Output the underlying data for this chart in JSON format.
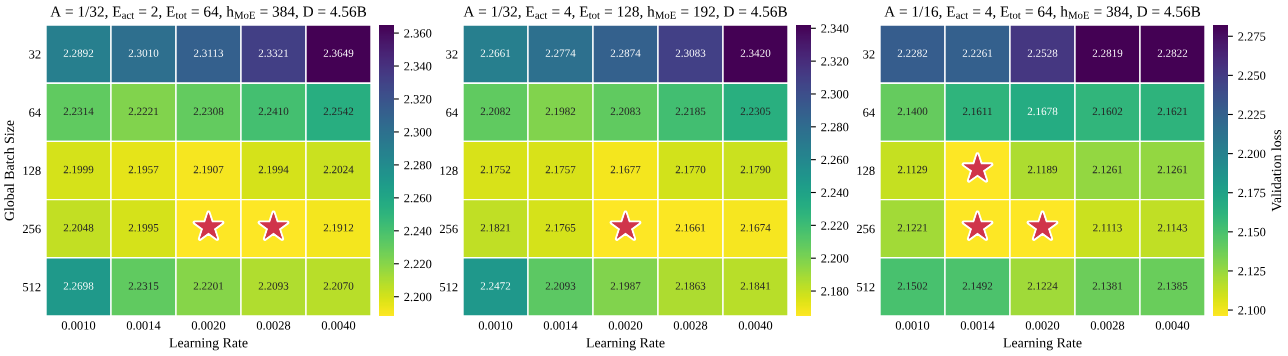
{
  "chart_data": [
    {
      "type": "heatmap",
      "title": "A = 1/32, E$_{act}$ = 2, E$_{tot}$ = 64, h$_{MoE}$ = 384, D = 4.56B",
      "xlabel": "Learning Rate",
      "ylabel": "Global Batch Size",
      "categories": [
        "0.0010",
        "0.0014",
        "0.0020",
        "0.0028",
        "0.0040"
      ],
      "y_categories": [
        "32",
        "64",
        "128",
        "256",
        "512"
      ],
      "cells": [
        [
          2.2892,
          2.301,
          2.3113,
          2.3321,
          2.3649
        ],
        [
          2.2314,
          2.2221,
          2.2308,
          2.241,
          2.2542
        ],
        [
          2.1999,
          2.1957,
          2.1907,
          2.1994,
          2.2024
        ],
        [
          2.2048,
          2.1995,
          2.1883,
          2.1884,
          2.1912
        ],
        [
          2.2698,
          2.2315,
          2.2201,
          2.2093,
          2.207
        ]
      ],
      "cell_labels": [
        [
          "2.2892",
          "2.3010",
          "2.3113",
          "2.3321",
          "2.3649"
        ],
        [
          "2.2314",
          "2.2221",
          "2.2308",
          "2.2410",
          "2.2542"
        ],
        [
          "2.1999",
          "2.1957",
          "2.1907",
          "2.1994",
          "2.2024"
        ],
        [
          "2.2048",
          "2.1995",
          "★",
          "★",
          "2.1912"
        ],
        [
          "2.2698",
          "2.2315",
          "2.2201",
          "2.2093",
          "2.2070"
        ]
      ],
      "clim": [
        2.1883,
        2.3649
      ],
      "cticks": [
        {
          "value": 2.2,
          "label": "2.200"
        },
        {
          "value": 2.22,
          "label": "2.220"
        },
        {
          "value": 2.24,
          "label": "2.240"
        },
        {
          "value": 2.26,
          "label": "2.260"
        },
        {
          "value": 2.28,
          "label": "2.280"
        },
        {
          "value": 2.3,
          "label": "2.300"
        },
        {
          "value": 2.32,
          "label": "2.320"
        },
        {
          "value": 2.34,
          "label": "2.340"
        },
        {
          "value": 2.36,
          "label": "2.360"
        }
      ],
      "data_labels": true
    },
    {
      "type": "heatmap",
      "title": "A = 1/32, E$_{act}$ = 4, E$_{tot}$ = 128, h$_{MoE}$ = 192, D = 4.56B",
      "xlabel": "Learning Rate",
      "categories": [
        "0.0010",
        "0.0014",
        "0.0020",
        "0.0028",
        "0.0040"
      ],
      "y_categories": [
        "32",
        "64",
        "128",
        "256",
        "512"
      ],
      "cells": [
        [
          2.2661,
          2.2774,
          2.2874,
          2.3083,
          2.342
        ],
        [
          2.2082,
          2.1982,
          2.2083,
          2.2185,
          2.2305
        ],
        [
          2.1752,
          2.1757,
          2.1677,
          2.177,
          2.179
        ],
        [
          2.1821,
          2.1765,
          2.1648,
          2.1661,
          2.1674
        ],
        [
          2.2472,
          2.2093,
          2.1987,
          2.1863,
          2.1841
        ]
      ],
      "cell_labels": [
        [
          "2.2661",
          "2.2774",
          "2.2874",
          "2.3083",
          "2.3420"
        ],
        [
          "2.2082",
          "2.1982",
          "2.2083",
          "2.2185",
          "2.2305"
        ],
        [
          "2.1752",
          "2.1757",
          "2.1677",
          "2.1770",
          "2.1790"
        ],
        [
          "2.1821",
          "2.1765",
          "★",
          "2.1661",
          "2.1674"
        ],
        [
          "2.2472",
          "2.2093",
          "2.1987",
          "2.1863",
          "2.1841"
        ]
      ],
      "clim": [
        2.1648,
        2.342
      ],
      "cticks": [
        {
          "value": 2.18,
          "label": "2.180"
        },
        {
          "value": 2.2,
          "label": "2.200"
        },
        {
          "value": 2.22,
          "label": "2.220"
        },
        {
          "value": 2.24,
          "label": "2.240"
        },
        {
          "value": 2.26,
          "label": "2.260"
        },
        {
          "value": 2.28,
          "label": "2.280"
        },
        {
          "value": 2.3,
          "label": "2.300"
        },
        {
          "value": 2.32,
          "label": "2.320"
        },
        {
          "value": 2.34,
          "label": "2.340"
        }
      ],
      "data_labels": true
    },
    {
      "type": "heatmap",
      "title": "A = 1/16, E$_{act}$ = 4, E$_{tot}$ = 64, h$_{MoE}$ = 384, D = 4.56B",
      "xlabel": "Learning Rate",
      "clabel": "Validation loss",
      "categories": [
        "0.0010",
        "0.0014",
        "0.0020",
        "0.0028",
        "0.0040"
      ],
      "y_categories": [
        "32",
        "64",
        "128",
        "256",
        "512"
      ],
      "cells": [
        [
          2.2282,
          2.2261,
          2.2528,
          2.2819,
          2.2822
        ],
        [
          2.14,
          2.1611,
          2.1678,
          2.1602,
          2.1621
        ],
        [
          2.1129,
          2.0963,
          2.1189,
          2.1261,
          2.1261
        ],
        [
          2.1221,
          2.0963,
          2.0962,
          2.1113,
          2.1143
        ],
        [
          2.1502,
          2.1492,
          2.1224,
          2.1381,
          2.1385
        ]
      ],
      "cell_labels": [
        [
          "2.2282",
          "2.2261",
          "2.2528",
          "2.2819",
          "2.2822"
        ],
        [
          "2.1400",
          "2.1611",
          "2.1678",
          "2.1602",
          "2.1621"
        ],
        [
          "2.1129",
          "★",
          "2.1189",
          "2.1261",
          "2.1261"
        ],
        [
          "2.1221",
          "★",
          "★",
          "2.1113",
          "2.1143"
        ],
        [
          "2.1502",
          "2.1492",
          "2.1224",
          "2.1381",
          "2.1385"
        ]
      ],
      "clim": [
        2.0962,
        2.2822
      ],
      "cticks": [
        {
          "value": 2.1,
          "label": "2.100"
        },
        {
          "value": 2.125,
          "label": "2.125"
        },
        {
          "value": 2.15,
          "label": "2.150"
        },
        {
          "value": 2.175,
          "label": "2.175"
        },
        {
          "value": 2.2,
          "label": "2.200"
        },
        {
          "value": 2.225,
          "label": "2.225"
        },
        {
          "value": 2.25,
          "label": "2.250"
        },
        {
          "value": 2.275,
          "label": "2.275"
        }
      ],
      "data_labels": true
    }
  ]
}
